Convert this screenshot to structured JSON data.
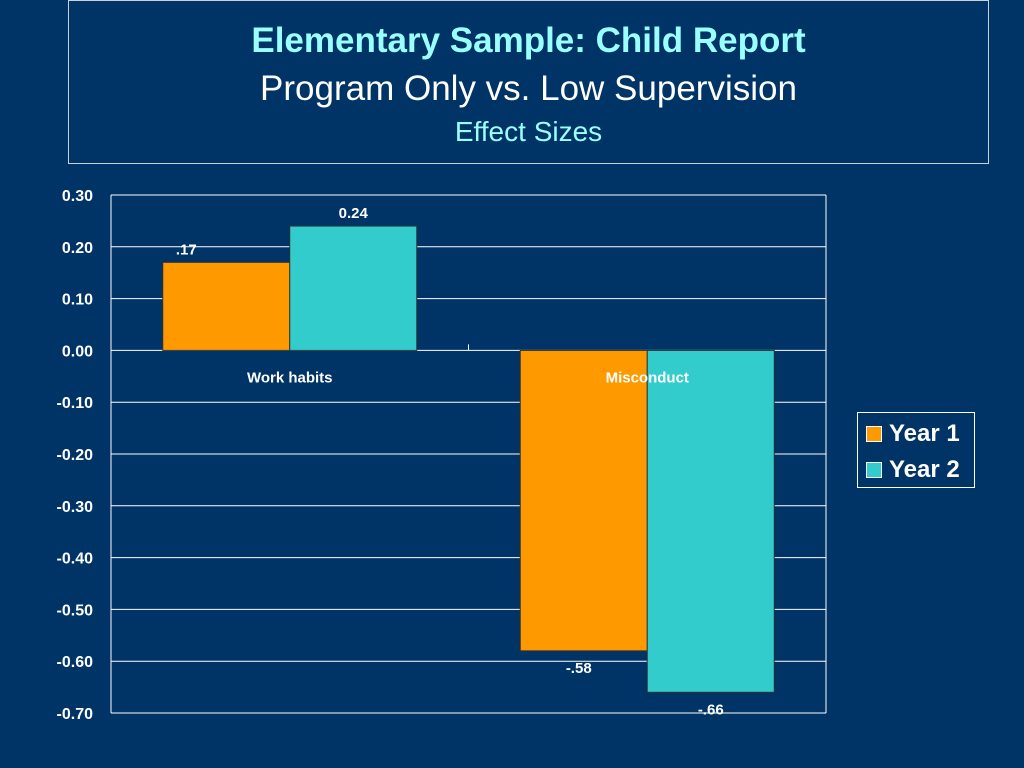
{
  "title": {
    "main": "Elementary Sample: Child Report",
    "sub": "Program Only vs. Low Supervision",
    "sub2": "Effect Sizes"
  },
  "colors": {
    "background": "#003366",
    "title_accent": "#99ffff",
    "year1": "#ff9900",
    "year2": "#33cccc",
    "gridline": "#ffffff"
  },
  "chart_data": {
    "type": "bar",
    "categories": [
      "Work habits",
      "Misconduct"
    ],
    "series": [
      {
        "name": "Year 1",
        "values": [
          0.17,
          -0.58
        ],
        "labels": [
          ".17",
          "-.58"
        ],
        "color": "#ff9900"
      },
      {
        "name": "Year 2",
        "values": [
          0.24,
          -0.66
        ],
        "labels": [
          "0.24",
          "-.66"
        ],
        "color": "#33cccc"
      }
    ],
    "ylim": [
      -0.7,
      0.3
    ],
    "yticks": [
      "0.30",
      "0.20",
      "0.10",
      "0.00",
      "-0.10",
      "-0.20",
      "-0.30",
      "-0.40",
      "-0.50",
      "-0.60",
      "-0.70"
    ],
    "grid": true,
    "legend": "right"
  }
}
